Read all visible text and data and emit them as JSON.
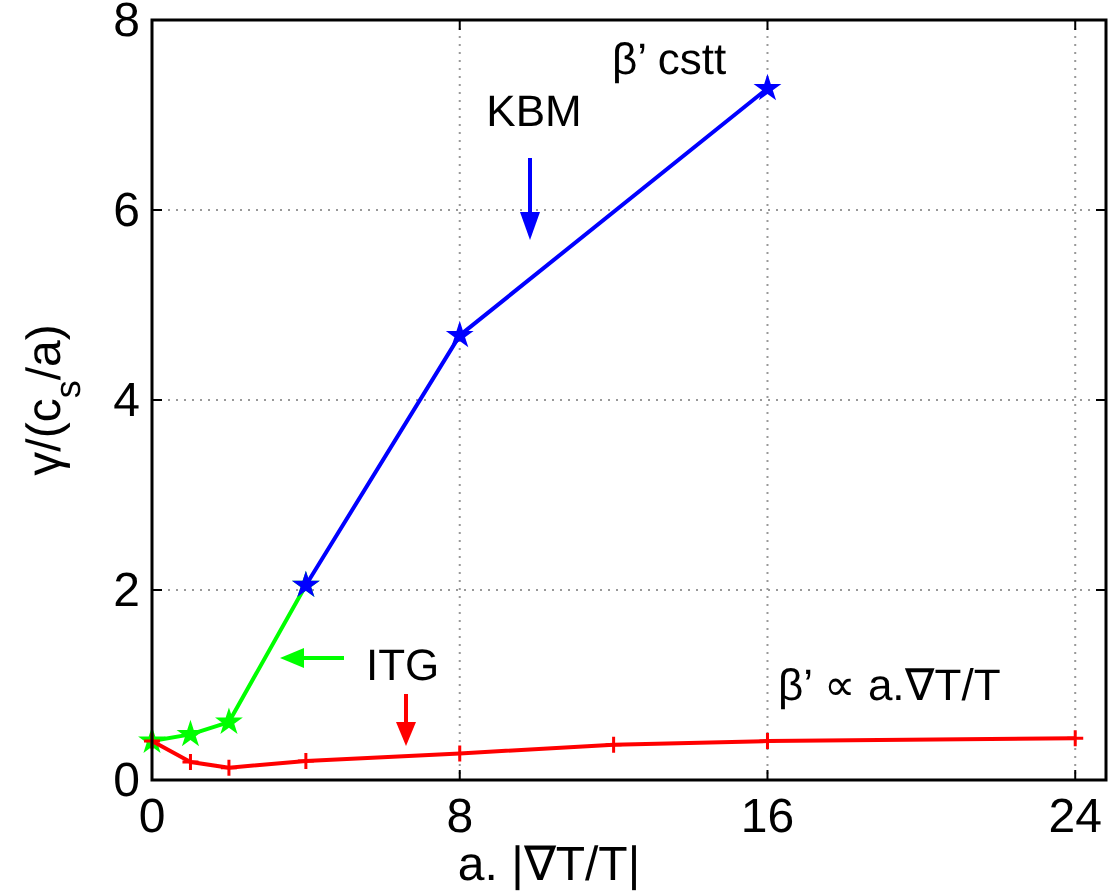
{
  "chart_data": {
    "type": "line",
    "xlabel": "a. |∇T/T|",
    "ylabel": "γ/(c$_{s}$/a)",
    "xlim": [
      0,
      24.8
    ],
    "ylim": [
      0,
      8
    ],
    "xticks": [
      0,
      8,
      16,
      24
    ],
    "yticks": [
      0,
      2,
      4,
      6,
      8
    ],
    "grid": true,
    "line_style": "solid",
    "series": [
      {
        "color": "#00ff00",
        "marker": "star",
        "x": [
          0,
          1,
          2,
          4
        ],
        "values": [
          0.41,
          0.48,
          0.61,
          2.05
        ]
      },
      {
        "color": "#0000ff",
        "marker": "star",
        "x": [
          4,
          8,
          16
        ],
        "values": [
          2.05,
          4.68,
          7.28
        ]
      },
      {
        "color": "#ff0000",
        "marker": "cross",
        "x": [
          0,
          1,
          2,
          4,
          8,
          12,
          16,
          24
        ],
        "values": [
          0.41,
          0.19,
          0.13,
          0.2,
          0.28,
          0.37,
          0.41,
          0.44
        ]
      }
    ],
    "annotations": [
      "KBM",
      "ITG",
      "β’ cstt",
      "β’ ∝ a.∇T/T"
    ]
  }
}
